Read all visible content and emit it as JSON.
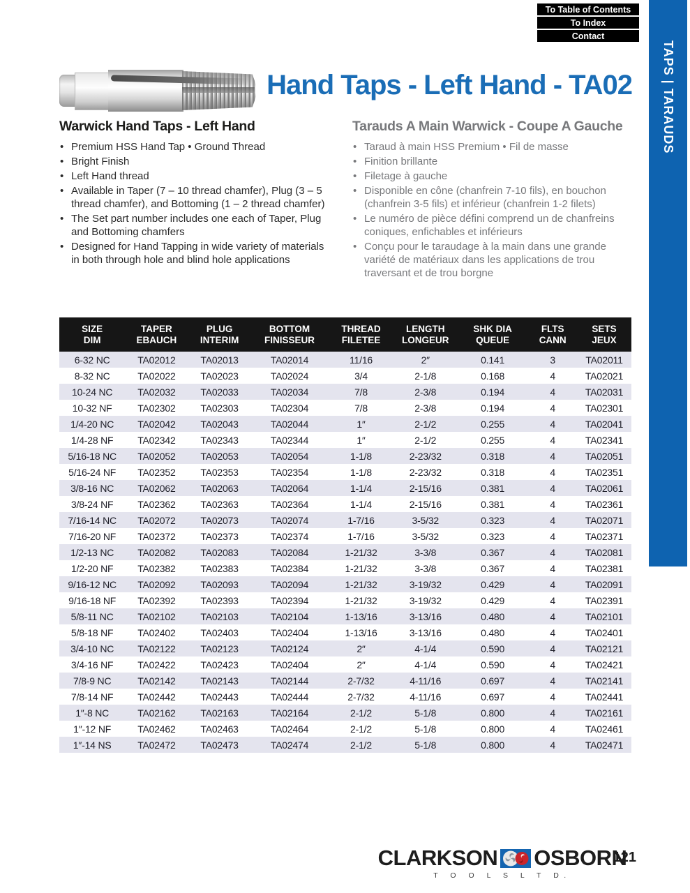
{
  "nav": {
    "buttons": [
      "To Table of Contents",
      "To Index",
      "Contact"
    ]
  },
  "sidebar": {
    "label": "TAPS | TARAUDS"
  },
  "header": {
    "title": "Hand Taps - Left Hand - TA02"
  },
  "colors": {
    "accent_blue": "#1a6db6",
    "sidebar_blue": "#0e63b0",
    "table_header_black": "#161616",
    "row_stripe": "#e4e4ee",
    "french_gray": "#77787b",
    "logo_red": "#c9242b"
  },
  "sections": {
    "en": {
      "heading": "Warwick Hand Taps - Left Hand",
      "bullets": [
        "Premium HSS Hand Tap  •  Ground Thread",
        "Bright Finish",
        "Left Hand thread",
        "Available in Taper (7 – 10 thread chamfer), Plug (3 – 5 thread chamfer), and Bottoming (1 – 2 thread chamfer)",
        "The Set part number includes one each of Taper, Plug and Bottoming chamfers",
        "Designed for Hand Tapping in wide variety of materials in both through hole and blind hole applications"
      ]
    },
    "fr": {
      "heading": "Tarauds A Main Warwick - Coupe A Gauche",
      "bullets": [
        "Taraud à main HSS Premium  •  Fil de masse",
        "Finition brillante",
        "Filetage à gauche",
        "Disponible en cône (chanfrein 7-10 fils), en bouchon (chanfrein 3-5 fils) et inférieur (chanfrein 1-2 filets)",
        "Le numéro de pièce défini comprend un de chanfreins coniques, enfichables et inférieurs",
        "Conçu pour le taraudage à la main dans une grande variété de matériaux dans les applications de trou traversant et de trou borgne"
      ]
    }
  },
  "table": {
    "headers": [
      [
        "SIZE",
        "DIM"
      ],
      [
        "TAPER",
        "EBAUCH"
      ],
      [
        "PLUG",
        "INTERIM"
      ],
      [
        "BOTTOM",
        "FINISSEUR"
      ],
      [
        "THREAD",
        "FILETEE"
      ],
      [
        "LENGTH",
        "LONGEUR"
      ],
      [
        "SHK DIA",
        "QUEUE"
      ],
      [
        "FLTS",
        "CANN"
      ],
      [
        "SETS",
        "JEUX"
      ]
    ],
    "col_widths_pct": [
      11.5,
      11,
      11,
      13.5,
      11.5,
      11,
      12.5,
      8.5,
      9.5
    ],
    "rows": [
      [
        "6-32 NC",
        "TA02012",
        "TA02013",
        "TA02014",
        "11/16",
        "2″",
        "0.141",
        "3",
        "TA02011"
      ],
      [
        "8-32 NC",
        "TA02022",
        "TA02023",
        "TA02024",
        "3/4",
        "2-1/8",
        "0.168",
        "4",
        "TA02021"
      ],
      [
        "10-24 NC",
        "TA02032",
        "TA02033",
        "TA02034",
        "7/8",
        "2-3/8",
        "0.194",
        "4",
        "TA02031"
      ],
      [
        "10-32 NF",
        "TA02302",
        "TA02303",
        "TA02304",
        "7/8",
        "2-3/8",
        "0.194",
        "4",
        "TA02301"
      ],
      [
        "1/4-20 NC",
        "TA02042",
        "TA02043",
        "TA02044",
        "1″",
        "2-1/2",
        "0.255",
        "4",
        "TA02041"
      ],
      [
        "1/4-28 NF",
        "TA02342",
        "TA02343",
        "TA02344",
        "1″",
        "2-1/2",
        "0.255",
        "4",
        "TA02341"
      ],
      [
        "5/16-18 NC",
        "TA02052",
        "TA02053",
        "TA02054",
        "1-1/8",
        "2-23/32",
        "0.318",
        "4",
        "TA02051"
      ],
      [
        "5/16-24 NF",
        "TA02352",
        "TA02353",
        "TA02354",
        "1-1/8",
        "2-23/32",
        "0.318",
        "4",
        "TA02351"
      ],
      [
        "3/8-16 NC",
        "TA02062",
        "TA02063",
        "TA02064",
        "1-1/4",
        "2-15/16",
        "0.381",
        "4",
        "TA02061"
      ],
      [
        "3/8-24 NF",
        "TA02362",
        "TA02363",
        "TA02364",
        "1-1/4",
        "2-15/16",
        "0.381",
        "4",
        "TA02361"
      ],
      [
        "7/16-14 NC",
        "TA02072",
        "TA02073",
        "TA02074",
        "1-7/16",
        "3-5/32",
        "0.323",
        "4",
        "TA02071"
      ],
      [
        "7/16-20 NF",
        "TA02372",
        "TA02373",
        "TA02374",
        "1-7/16",
        "3-5/32",
        "0.323",
        "4",
        "TA02371"
      ],
      [
        "1/2-13 NC",
        "TA02082",
        "TA02083",
        "TA02084",
        "1-21/32",
        "3-3/8",
        "0.367",
        "4",
        "TA02081"
      ],
      [
        "1/2-20 NF",
        "TA02382",
        "TA02383",
        "TA02384",
        "1-21/32",
        "3-3/8",
        "0.367",
        "4",
        "TA02381"
      ],
      [
        "9/16-12 NC",
        "TA02092",
        "TA02093",
        "TA02094",
        "1-21/32",
        "3-19/32",
        "0.429",
        "4",
        "TA02091"
      ],
      [
        "9/16-18 NF",
        "TA02392",
        "TA02393",
        "TA02394",
        "1-21/32",
        "3-19/32",
        "0.429",
        "4",
        "TA02391"
      ],
      [
        "5/8-11 NC",
        "TA02102",
        "TA02103",
        "TA02104",
        "1-13/16",
        "3-13/16",
        "0.480",
        "4",
        "TA02101"
      ],
      [
        "5/8-18 NF",
        "TA02402",
        "TA02403",
        "TA02404",
        "1-13/16",
        "3-13/16",
        "0.480",
        "4",
        "TA02401"
      ],
      [
        "3/4-10 NC",
        "TA02122",
        "TA02123",
        "TA02124",
        "2″",
        "4-1/4",
        "0.590",
        "4",
        "TA02121"
      ],
      [
        "3/4-16 NF",
        "TA02422",
        "TA02423",
        "TA02404",
        "2″",
        "4-1/4",
        "0.590",
        "4",
        "TA02421"
      ],
      [
        "7/8-9 NC",
        "TA02142",
        "TA02143",
        "TA02144",
        "2-7/32",
        "4-11/16",
        "0.697",
        "4",
        "TA02141"
      ],
      [
        "7/8-14 NF",
        "TA02442",
        "TA02443",
        "TA02444",
        "2-7/32",
        "4-11/16",
        "0.697",
        "4",
        "TA02441"
      ],
      [
        "1″-8 NC",
        "TA02162",
        "TA02163",
        "TA02164",
        "2-1/2",
        "5-1/8",
        "0.800",
        "4",
        "TA02161"
      ],
      [
        "1″-12 NF",
        "TA02462",
        "TA02463",
        "TA02464",
        "2-1/2",
        "5-1/8",
        "0.800",
        "4",
        "TA02461"
      ],
      [
        "1″-14 NS",
        "TA02472",
        "TA02473",
        "TA02474",
        "2-1/2",
        "5-1/8",
        "0.800",
        "4",
        "TA02471"
      ]
    ]
  },
  "footer": {
    "brand_left": "CLARKSON",
    "brand_right": "OSBORN",
    "sub": "T O O L S   L T D.",
    "page": "121"
  }
}
